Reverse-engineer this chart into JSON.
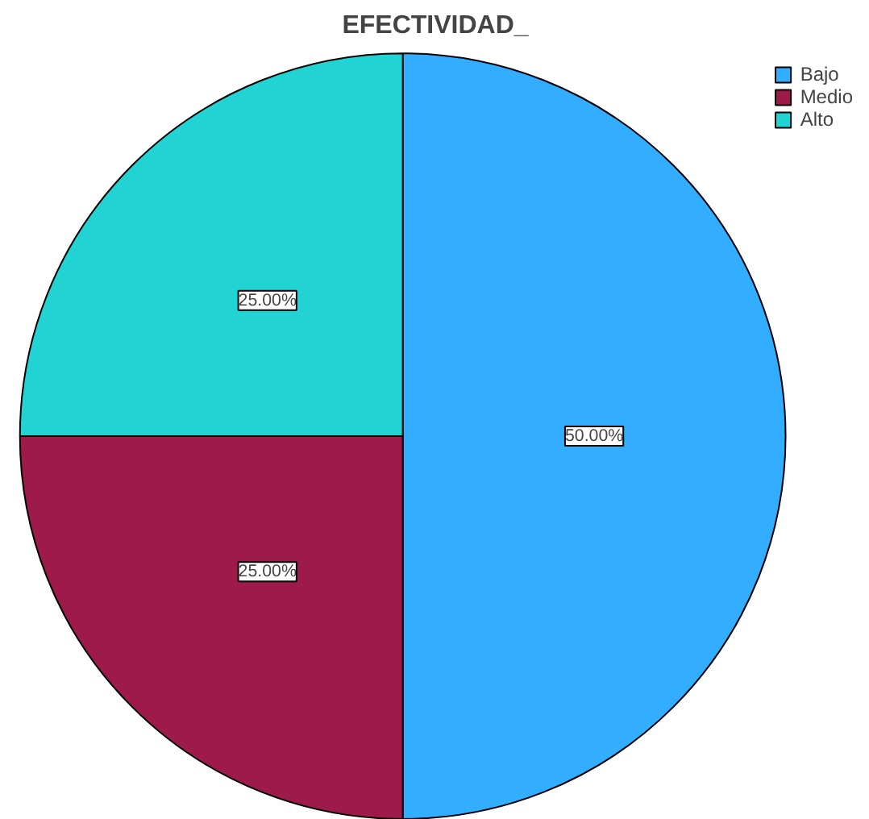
{
  "chart_data": {
    "type": "pie",
    "title": "EFECTIVIDAD_",
    "categories": [
      "Bajo",
      "Medio",
      "Alto"
    ],
    "values": [
      50,
      25,
      25
    ],
    "colors": [
      "#33adff",
      "#9e1a4a",
      "#22d3d3"
    ],
    "value_labels": [
      "50.00%",
      "25.00%",
      "25.00%"
    ],
    "legend": "top right"
  }
}
